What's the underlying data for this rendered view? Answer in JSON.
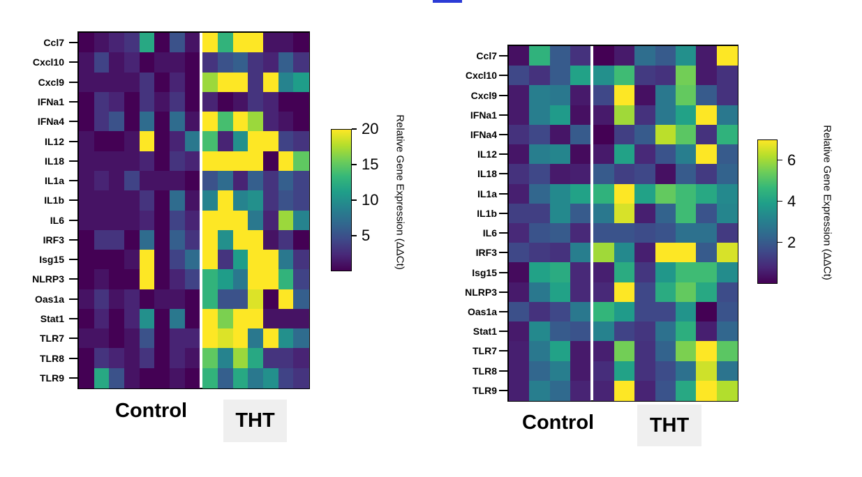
{
  "chart_data": [
    {
      "type": "heatmap",
      "rows": [
        "Ccl7",
        "Cxcl10",
        "Cxcl9",
        "IFNa1",
        "IFNa4",
        "IL12",
        "IL18",
        "IL1a",
        "IL1b",
        "IL6",
        "IRF3",
        "Isg15",
        "NLRP3",
        "Oas1a",
        "Stat1",
        "TLR7",
        "TLR8",
        "TLR9"
      ],
      "groups": [
        {
          "label": "Control",
          "columns": 8
        },
        {
          "label": "THT",
          "columns": 7
        }
      ],
      "colorbar": {
        "label": "Relative Gene Expression (ΔΔCt)",
        "ticks": [
          "5",
          "10",
          "15",
          "20"
        ],
        "range": [
          0,
          20
        ],
        "colormap": "viridis"
      },
      "values": [
        [
          0,
          1,
          2,
          3,
          12,
          0,
          5,
          1,
          20,
          13,
          20,
          20,
          1,
          1,
          0
        ],
        [
          1,
          4,
          1,
          2,
          0,
          1,
          1,
          0,
          3,
          5,
          6,
          3,
          2,
          6,
          3
        ],
        [
          1,
          1,
          1,
          1,
          3,
          0,
          2,
          0,
          17,
          20,
          20,
          3,
          20,
          9,
          11
        ],
        [
          0,
          3,
          2,
          0,
          3,
          1,
          3,
          0,
          2,
          0,
          1,
          3,
          2,
          0,
          0
        ],
        [
          0,
          3,
          5,
          0,
          7,
          0,
          7,
          1,
          20,
          14,
          20,
          17,
          2,
          1,
          0
        ],
        [
          1,
          0,
          0,
          1,
          20,
          0,
          2,
          8,
          14,
          2,
          10,
          20,
          20,
          4,
          3
        ],
        [
          1,
          1,
          1,
          1,
          2,
          0,
          3,
          2,
          20,
          20,
          20,
          20,
          0,
          20,
          15
        ],
        [
          1,
          2,
          1,
          4,
          1,
          1,
          1,
          0,
          5,
          7,
          2,
          6,
          3,
          6,
          4
        ],
        [
          1,
          1,
          1,
          1,
          3,
          0,
          7,
          1,
          9,
          20,
          9,
          10,
          3,
          5,
          4
        ],
        [
          1,
          1,
          1,
          1,
          2,
          0,
          4,
          2,
          20,
          20,
          20,
          8,
          2,
          17,
          9
        ],
        [
          0,
          3,
          3,
          0,
          7,
          0,
          6,
          3,
          20,
          10,
          20,
          20,
          1,
          3,
          0
        ],
        [
          0,
          0,
          0,
          1,
          20,
          0,
          4,
          7,
          20,
          3,
          11,
          20,
          20,
          8,
          3
        ],
        [
          0,
          1,
          0,
          0,
          20,
          0,
          2,
          4,
          13,
          11,
          8,
          20,
          20,
          13,
          4
        ],
        [
          1,
          3,
          1,
          2,
          0,
          1,
          1,
          0,
          13,
          5,
          5,
          19,
          0,
          20,
          6
        ],
        [
          0,
          2,
          0,
          2,
          10,
          0,
          8,
          0,
          20,
          16,
          20,
          20,
          1,
          1,
          1
        ],
        [
          1,
          1,
          0,
          1,
          5,
          0,
          2,
          2,
          20,
          19,
          20,
          8,
          20,
          10,
          7
        ],
        [
          0,
          3,
          2,
          1,
          3,
          0,
          2,
          1,
          15,
          9,
          17,
          12,
          3,
          3,
          2
        ],
        [
          0,
          12,
          5,
          1,
          0,
          0,
          1,
          0,
          13,
          6,
          12,
          8,
          10,
          4,
          3
        ]
      ]
    },
    {
      "type": "heatmap",
      "rows": [
        "Ccl7",
        "Cxcl10",
        "Cxcl9",
        "IFNa1",
        "IFNa4",
        "IL12",
        "IL18",
        "IL1a",
        "IL1b",
        "IL6",
        "IRF3",
        "Isg15",
        "NLRP3",
        "Oas1a",
        "Stat1",
        "TLR7",
        "TLR8",
        "TLR9"
      ],
      "groups": [
        {
          "label": "Control",
          "columns": 4
        },
        {
          "label": "THT",
          "columns": 7
        }
      ],
      "colorbar": {
        "label": "Relative Gene Expression (ΔΔCt)",
        "ticks": [
          "2",
          "4",
          "6"
        ],
        "range": [
          0,
          7
        ],
        "colormap": "viridis"
      },
      "values": [
        [
          0.3,
          4.5,
          2,
          1,
          0,
          0.5,
          2.5,
          2,
          3.5,
          0.5,
          7
        ],
        [
          1.5,
          1,
          2,
          4,
          3.5,
          4.8,
          1.2,
          1,
          5.5,
          0.5,
          1
        ],
        [
          0.5,
          3,
          2.8,
          0.5,
          1.5,
          7,
          0.3,
          2.8,
          5.3,
          2,
          1
        ],
        [
          0.5,
          3,
          3.8,
          0.3,
          0.5,
          6,
          1,
          2.8,
          4,
          7,
          2.8
        ],
        [
          1,
          1.5,
          0.4,
          2,
          0,
          1.3,
          2,
          6.3,
          5.2,
          1,
          4.5
        ],
        [
          0.4,
          3,
          3.2,
          0.2,
          0.5,
          4,
          0.8,
          1.8,
          3,
          7,
          2
        ],
        [
          1,
          1.5,
          0.5,
          0.6,
          2,
          1.3,
          1.5,
          0.3,
          2,
          1.2,
          2.2
        ],
        [
          0.6,
          2.3,
          3.3,
          4,
          4.5,
          7,
          4,
          5.3,
          4.8,
          4.2,
          3.3
        ],
        [
          1.3,
          1.3,
          3.3,
          2,
          2.8,
          6.6,
          0.6,
          2.2,
          4.8,
          1.8,
          3.2
        ],
        [
          0.8,
          1.8,
          2,
          0.8,
          1.8,
          1.8,
          1.6,
          1.8,
          2.6,
          2.6,
          1.2
        ],
        [
          1.5,
          1.2,
          1,
          3,
          6,
          3.3,
          0.6,
          7,
          7,
          2,
          6.6
        ],
        [
          0.2,
          4,
          4.3,
          0.8,
          0.6,
          4.3,
          1.1,
          3.7,
          4.8,
          4.8,
          3.4
        ],
        [
          0.5,
          2.8,
          4,
          0.8,
          0.8,
          7,
          1.5,
          4.3,
          5.3,
          4.2,
          1.6
        ],
        [
          1.7,
          1,
          1.5,
          2.8,
          4.6,
          3.8,
          1.5,
          1.5,
          3.6,
          0,
          1.8
        ],
        [
          0.5,
          3.3,
          2,
          1.8,
          3.1,
          1.4,
          1.1,
          2.6,
          4.4,
          0.6,
          2.3
        ],
        [
          0.6,
          2.8,
          4,
          0.5,
          0.6,
          5.5,
          1,
          2.2,
          5.6,
          7,
          5.2
        ],
        [
          0.6,
          2.3,
          3,
          0.5,
          0.9,
          4,
          1,
          1.6,
          2.6,
          6.5,
          2.7
        ],
        [
          0.6,
          3,
          2.4,
          0.7,
          0.7,
          7,
          0.7,
          1.8,
          4.2,
          7,
          6.2
        ]
      ]
    }
  ]
}
